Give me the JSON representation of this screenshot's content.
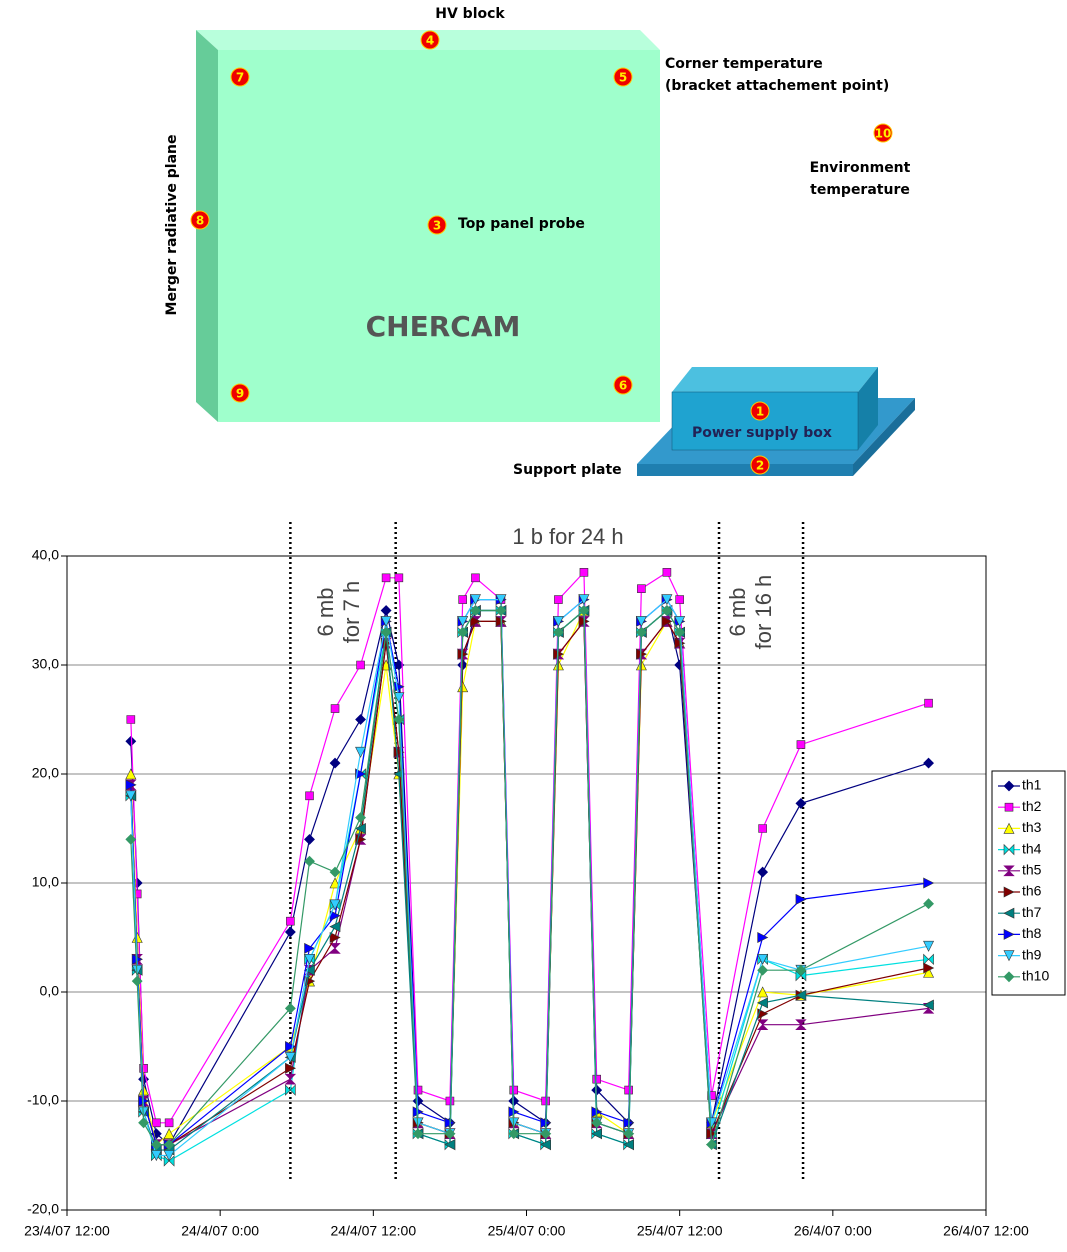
{
  "diagram": {
    "hv_block": "HV block",
    "corner_temperature": [
      "Corner temperature",
      "(bracket attachement point)"
    ],
    "environment_temperature": [
      "Environment",
      "temperature"
    ],
    "top_panel_probe": "Top panel probe",
    "merger_radiative_plane": "Merger radiative plane",
    "chercam": "CHERCAM",
    "power_supply_box": "Power supply box",
    "support_plate": "Support plate",
    "probes": [
      "1",
      "2",
      "3",
      "4",
      "5",
      "6",
      "7",
      "8",
      "9",
      "10"
    ]
  },
  "chart_data": {
    "type": "line",
    "x": [
      "2007-04-23T17:00",
      "2007-04-23T17:30",
      "2007-04-23T18:00",
      "2007-04-23T19:00",
      "2007-04-23T20:00",
      "2007-04-24T05:30",
      "2007-04-24T07:00",
      "2007-04-24T09:00",
      "2007-04-24T11:00",
      "2007-04-24T13:00",
      "2007-04-24T14:00",
      "2007-04-24T15:30",
      "2007-04-24T18:00",
      "2007-04-24T19:00",
      "2007-04-24T20:00",
      "2007-04-24T22:00",
      "2007-04-24T23:00",
      "2007-04-25T01:30",
      "2007-04-25T02:30",
      "2007-04-25T04:30",
      "2007-04-25T05:30",
      "2007-04-25T08:00",
      "2007-04-25T09:00",
      "2007-04-25T11:00",
      "2007-04-25T12:00",
      "2007-04-25T14:30",
      "2007-04-25T18:30",
      "2007-04-25T21:30",
      "2007-04-26T07:30"
    ],
    "series": [
      {
        "name": "th1",
        "color": "#000080",
        "marker": "diamond",
        "values": [
          23,
          10,
          -8,
          -13,
          -14,
          5.5,
          14,
          21,
          25,
          35,
          30,
          -10,
          -12,
          30,
          35,
          35,
          -10,
          -12,
          33,
          35,
          -9,
          -12,
          33,
          35,
          30,
          -12,
          11,
          17.3,
          21
        ]
      },
      {
        "name": "th2",
        "color": "#ff00ff",
        "marker": "square",
        "values": [
          25,
          9,
          -7,
          -12,
          -12,
          6.5,
          18,
          26,
          30,
          38,
          38,
          -9,
          -10,
          36,
          38,
          36,
          -9,
          -10,
          36,
          38.5,
          -8,
          -9,
          37,
          38.5,
          36,
          -9.5,
          15,
          22.7,
          26.5
        ]
      },
      {
        "name": "th3",
        "color": "#ffff00",
        "marker": "triangle-up",
        "values": [
          20,
          5,
          -9,
          -14,
          -13,
          -5,
          1,
          10,
          15,
          30,
          20,
          -12,
          -13,
          28,
          34,
          34,
          -12,
          -13,
          30,
          35,
          -11,
          -13,
          30,
          34,
          32,
          -12,
          0,
          -0.3,
          1.8
        ]
      },
      {
        "name": "th4",
        "color": "#00e0e0",
        "marker": "bowtie",
        "values": [
          18,
          2,
          -11,
          -15,
          -15.5,
          -9,
          3,
          8,
          20,
          33,
          25,
          -13,
          -14,
          33,
          35,
          35,
          -13,
          -14,
          33,
          35,
          -13,
          -14,
          33,
          35,
          33,
          -13,
          3,
          1.5,
          3
        ]
      },
      {
        "name": "th5",
        "color": "#800080",
        "marker": "hourglass",
        "values": [
          19,
          3,
          -10,
          -14,
          -14,
          -8,
          2,
          4,
          14,
          32,
          22,
          -12,
          -13,
          31,
          34,
          34,
          -12,
          -13,
          31,
          34,
          -12,
          -13,
          31,
          34,
          32,
          -13,
          -3,
          -3,
          -1.5
        ]
      },
      {
        "name": "th6",
        "color": "#800000",
        "marker": "triangle-right",
        "values": [
          19,
          3,
          -10,
          -14,
          -14,
          -7,
          1,
          5,
          14,
          32,
          22,
          -12,
          -13,
          31,
          34,
          34,
          -12,
          -13,
          31,
          34,
          -12,
          -13,
          31,
          34,
          32,
          -13,
          -2,
          -0.3,
          2.2
        ]
      },
      {
        "name": "th7",
        "color": "#008080",
        "marker": "triangle-left",
        "values": [
          18,
          2,
          -11,
          -14.5,
          -14.5,
          -6,
          2,
          6,
          15,
          33,
          20,
          -13,
          -14,
          33,
          35,
          35,
          -13,
          -14,
          33,
          35,
          -13,
          -14,
          33,
          35,
          33,
          -14,
          -1,
          -0.3,
          -1.2
        ]
      },
      {
        "name": "th8",
        "color": "#0000ff",
        "marker": "triangle-right",
        "values": [
          19,
          3,
          -10,
          -14,
          -14,
          -5,
          4,
          7,
          20,
          34,
          28,
          -11,
          -12,
          34,
          36,
          36,
          -11,
          -12,
          34,
          36,
          -11,
          -12,
          34,
          36,
          34,
          -12,
          5,
          8.5,
          10
        ]
      },
      {
        "name": "th9",
        "color": "#33ccff",
        "marker": "triangle-down",
        "values": [
          18,
          2,
          -11,
          -15,
          -15,
          -6,
          3,
          8,
          22,
          34,
          27,
          -12,
          -13,
          34,
          36,
          36,
          -12,
          -13,
          34,
          36,
          -12,
          -13,
          34,
          36,
          34,
          -12,
          3,
          2,
          4.2
        ]
      },
      {
        "name": "th10",
        "color": "#339966",
        "marker": "diamond",
        "values": [
          14,
          1,
          -12,
          -14,
          -14,
          -1.5,
          12,
          11,
          16,
          33,
          25,
          -13,
          -13,
          33,
          35,
          35,
          -13,
          -13,
          33,
          35,
          -12,
          -13,
          33,
          35,
          33,
          -14,
          2,
          2,
          8.1
        ]
      }
    ],
    "xlim": [
      "2007-04-23T12:00",
      "2007-04-26T12:00"
    ],
    "xticks": [
      {
        "value": "2007-04-23T12:00",
        "label": "23/4/07 12:00"
      },
      {
        "value": "2007-04-24T00:00",
        "label": "24/4/07 0:00"
      },
      {
        "value": "2007-04-24T12:00",
        "label": "24/4/07 12:00"
      },
      {
        "value": "2007-04-25T00:00",
        "label": "25/4/07 0:00"
      },
      {
        "value": "2007-04-25T12:00",
        "label": "25/4/07 12:00"
      },
      {
        "value": "2007-04-26T00:00",
        "label": "26/4/07 0:00"
      },
      {
        "value": "2007-04-26T12:00",
        "label": "26/4/07 12:00"
      }
    ],
    "ylim": [
      -20,
      40
    ],
    "yticks": [
      {
        "value": -20,
        "label": "-20,0"
      },
      {
        "value": -10,
        "label": "-10,0"
      },
      {
        "value": 0,
        "label": "0,0"
      },
      {
        "value": 10,
        "label": "10,0"
      },
      {
        "value": 20,
        "label": "20,0"
      },
      {
        "value": 30,
        "label": "30,0"
      },
      {
        "value": 40,
        "label": "40,0"
      }
    ],
    "grid": true,
    "legend": "right",
    "event_lines": [
      "2007-04-24T05:30",
      "2007-04-24T13:45",
      "2007-04-25T15:05",
      "2007-04-25T21:40"
    ],
    "annotations": [
      [
        "6 mb",
        "for 7 h"
      ],
      [
        "1 b for 24 h"
      ],
      [
        "6 mb",
        "for 16 h"
      ]
    ]
  }
}
